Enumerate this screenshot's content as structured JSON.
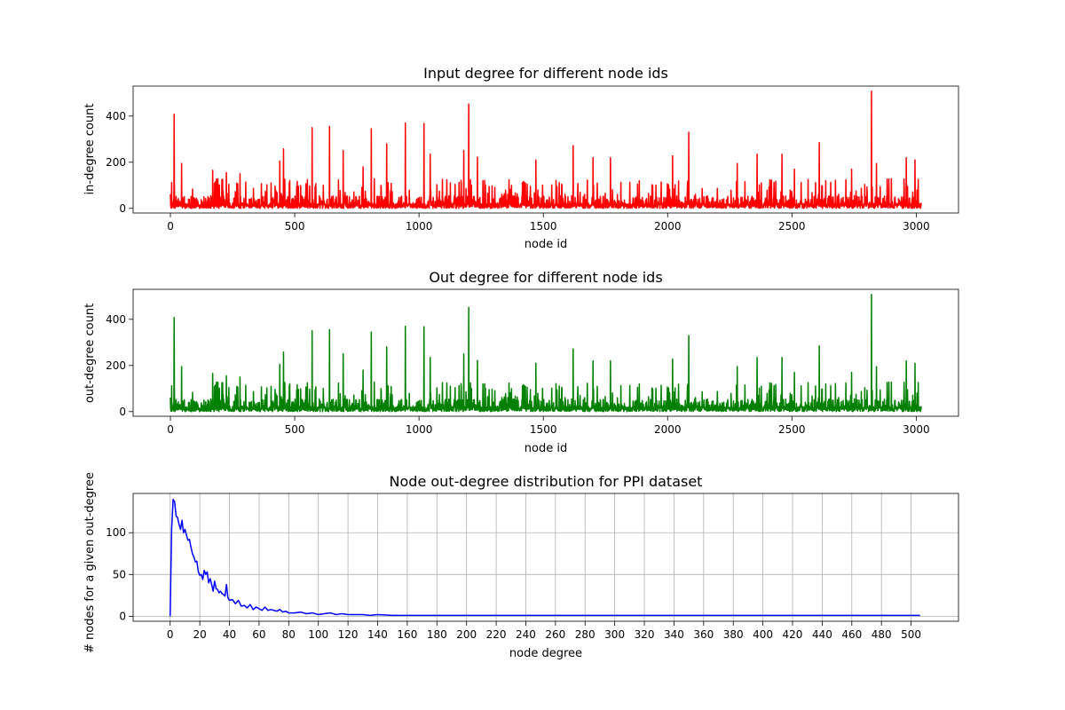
{
  "chart_data": [
    {
      "type": "line",
      "title": "Input degree for different node ids",
      "xlabel": "node id",
      "ylabel": "in-degree count",
      "xlim": [
        -150,
        3170
      ],
      "ylim": [
        -20,
        530
      ],
      "xticks": [
        0,
        500,
        1000,
        1500,
        2000,
        2500,
        3000
      ],
      "yticks": [
        0,
        200,
        400
      ],
      "grid": false,
      "color": "#ff0000",
      "series": [
        {
          "x_range": [
            0,
            3020
          ],
          "baseline_max": 55,
          "peaks": [
            [
              15,
              408
            ],
            [
              45,
              195
            ],
            [
              170,
              165
            ],
            [
              225,
              155
            ],
            [
              280,
              150
            ],
            [
              440,
              205
            ],
            [
              455,
              258
            ],
            [
              570,
              350
            ],
            [
              640,
              355
            ],
            [
              695,
              250
            ],
            [
              775,
              180
            ],
            [
              808,
              345
            ],
            [
              870,
              280
            ],
            [
              945,
              370
            ],
            [
              1020,
              368
            ],
            [
              1045,
              235
            ],
            [
              1180,
              250
            ],
            [
              1200,
              452
            ],
            [
              1235,
              222
            ],
            [
              1470,
              210
            ],
            [
              1620,
              272
            ],
            [
              1700,
              220
            ],
            [
              1770,
              220
            ],
            [
              2020,
              228
            ],
            [
              2085,
              330
            ],
            [
              2280,
              195
            ],
            [
              2360,
              235
            ],
            [
              2460,
              235
            ],
            [
              2510,
              170
            ],
            [
              2610,
              285
            ],
            [
              2740,
              170
            ],
            [
              2820,
              508
            ],
            [
              2840,
              195
            ],
            [
              2960,
              220
            ],
            [
              2995,
              210
            ]
          ]
        }
      ]
    },
    {
      "type": "line",
      "title": "Out degree for different node ids",
      "xlabel": "node id",
      "ylabel": "out-degree count",
      "xlim": [
        -150,
        3170
      ],
      "ylim": [
        -20,
        530
      ],
      "xticks": [
        0,
        500,
        1000,
        1500,
        2000,
        2500,
        3000
      ],
      "yticks": [
        0,
        200,
        400
      ],
      "grid": false,
      "color": "#008000",
      "series": [
        {
          "x_range": [
            0,
            3020
          ],
          "baseline_max": 55,
          "peaks": [
            [
              15,
              408
            ],
            [
              45,
              195
            ],
            [
              170,
              165
            ],
            [
              225,
              155
            ],
            [
              280,
              150
            ],
            [
              440,
              205
            ],
            [
              455,
              258
            ],
            [
              570,
              350
            ],
            [
              640,
              355
            ],
            [
              695,
              250
            ],
            [
              775,
              180
            ],
            [
              808,
              345
            ],
            [
              870,
              280
            ],
            [
              945,
              370
            ],
            [
              1020,
              368
            ],
            [
              1045,
              235
            ],
            [
              1180,
              250
            ],
            [
              1200,
              452
            ],
            [
              1235,
              222
            ],
            [
              1470,
              210
            ],
            [
              1620,
              272
            ],
            [
              1700,
              220
            ],
            [
              1770,
              220
            ],
            [
              2020,
              228
            ],
            [
              2085,
              330
            ],
            [
              2280,
              195
            ],
            [
              2360,
              235
            ],
            [
              2460,
              235
            ],
            [
              2510,
              170
            ],
            [
              2610,
              285
            ],
            [
              2740,
              170
            ],
            [
              2820,
              508
            ],
            [
              2840,
              195
            ],
            [
              2960,
              220
            ],
            [
              2995,
              210
            ]
          ]
        }
      ]
    },
    {
      "type": "line",
      "title": "Node out-degree distribution for PPI dataset",
      "xlabel": "node degree",
      "ylabel": "# nodes for a given out-degree",
      "xlim": [
        -25,
        532
      ],
      "ylim": [
        -6,
        147
      ],
      "xticks": [
        0,
        20,
        40,
        60,
        80,
        100,
        120,
        140,
        160,
        180,
        200,
        220,
        240,
        260,
        280,
        300,
        320,
        340,
        360,
        380,
        400,
        420,
        440,
        460,
        480,
        500
      ],
      "yticks": [
        0,
        50,
        100
      ],
      "grid": true,
      "color": "#0000ff",
      "series": [
        {
          "x": [
            0,
            1,
            2,
            3,
            4,
            5,
            6,
            7,
            8,
            9,
            10,
            11,
            12,
            13,
            14,
            15,
            16,
            17,
            18,
            19,
            20,
            21,
            22,
            23,
            24,
            25,
            26,
            27,
            28,
            29,
            30,
            31,
            32,
            33,
            34,
            35,
            36,
            37,
            38,
            39,
            40,
            42,
            44,
            46,
            48,
            50,
            52,
            54,
            56,
            58,
            60,
            62,
            64,
            66,
            68,
            70,
            72,
            74,
            76,
            78,
            80,
            84,
            88,
            92,
            96,
            100,
            104,
            108,
            112,
            116,
            120,
            125,
            130,
            135,
            140,
            150,
            160,
            170,
            180,
            190,
            200,
            220,
            240,
            260,
            280,
            300,
            340,
            380,
            420,
            460,
            500,
            506
          ],
          "y": [
            0,
            105,
            140,
            137,
            120,
            118,
            110,
            104,
            115,
            100,
            104,
            97,
            91,
            92,
            83,
            75,
            71,
            65,
            66,
            53,
            49,
            50,
            44,
            55,
            50,
            53,
            40,
            45,
            38,
            30,
            42,
            33,
            32,
            28,
            30,
            27,
            26,
            24,
            38,
            22,
            19,
            20,
            15,
            19,
            12,
            13,
            10,
            14,
            8,
            11,
            9,
            7,
            11,
            7,
            8,
            7,
            6,
            8,
            5,
            6,
            4,
            4,
            5,
            3,
            4,
            2,
            3,
            4,
            2,
            3,
            2,
            2,
            2,
            1,
            2,
            1,
            1,
            1,
            1,
            1,
            1,
            1,
            1,
            1,
            1,
            1,
            1,
            1,
            1,
            1,
            1,
            1
          ]
        }
      ]
    }
  ]
}
